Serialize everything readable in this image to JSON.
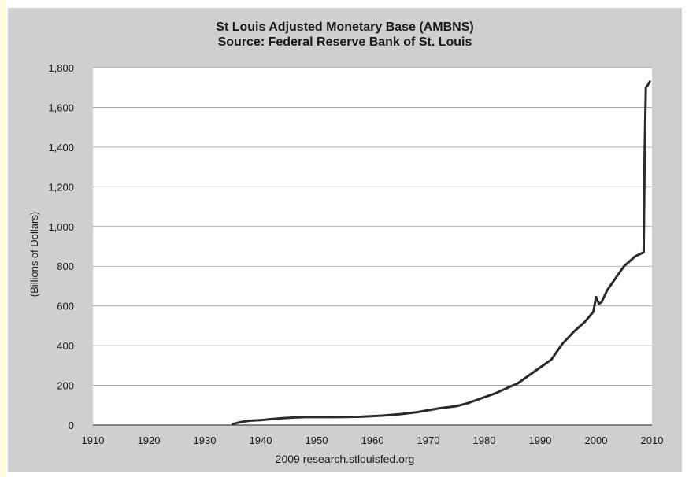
{
  "chart_data": {
    "type": "line",
    "title": "St Louis Adjusted Monetary Base (AMBNS)",
    "subtitle": "Source: Federal Reserve Bank of St. Louis",
    "xlabel": "",
    "ylabel": "(Billions of Dollars)",
    "source_note": "2009 research.stlouisfed.org",
    "xlim": [
      1910,
      2010
    ],
    "ylim": [
      0,
      1800
    ],
    "x_ticks": [
      "1910",
      "1920",
      "1930",
      "1940",
      "1950",
      "1960",
      "1970",
      "1980",
      "1990",
      "2000",
      "2010"
    ],
    "y_ticks": [
      "0",
      "200",
      "400",
      "600",
      "800",
      "1,000",
      "1,200",
      "1,400",
      "1,600",
      "1,800"
    ],
    "grid": "horizontal",
    "line_color": "#2a2a2a",
    "series": [
      {
        "x": [
          1935,
          1936,
          1937,
          1938,
          1940,
          1942,
          1944,
          1946,
          1948,
          1950,
          1952,
          1955,
          1958,
          1960,
          1962,
          1965,
          1968,
          1970,
          1972,
          1975,
          1977,
          1980,
          1982,
          1984,
          1986,
          1988,
          1990,
          1992,
          1994,
          1996,
          1998,
          1999.5,
          2000,
          2000.5,
          2001,
          2002,
          2003,
          2005,
          2007,
          2008.5,
          2008.7,
          2008.9,
          2009.2,
          2009.6
        ],
        "y": [
          5,
          12,
          18,
          22,
          25,
          30,
          35,
          38,
          40,
          40,
          40,
          41,
          42,
          45,
          48,
          55,
          65,
          75,
          85,
          95,
          110,
          140,
          160,
          185,
          210,
          250,
          290,
          330,
          410,
          470,
          520,
          570,
          645,
          610,
          620,
          680,
          720,
          800,
          850,
          870,
          1400,
          1700,
          1710,
          1730
        ]
      }
    ]
  }
}
